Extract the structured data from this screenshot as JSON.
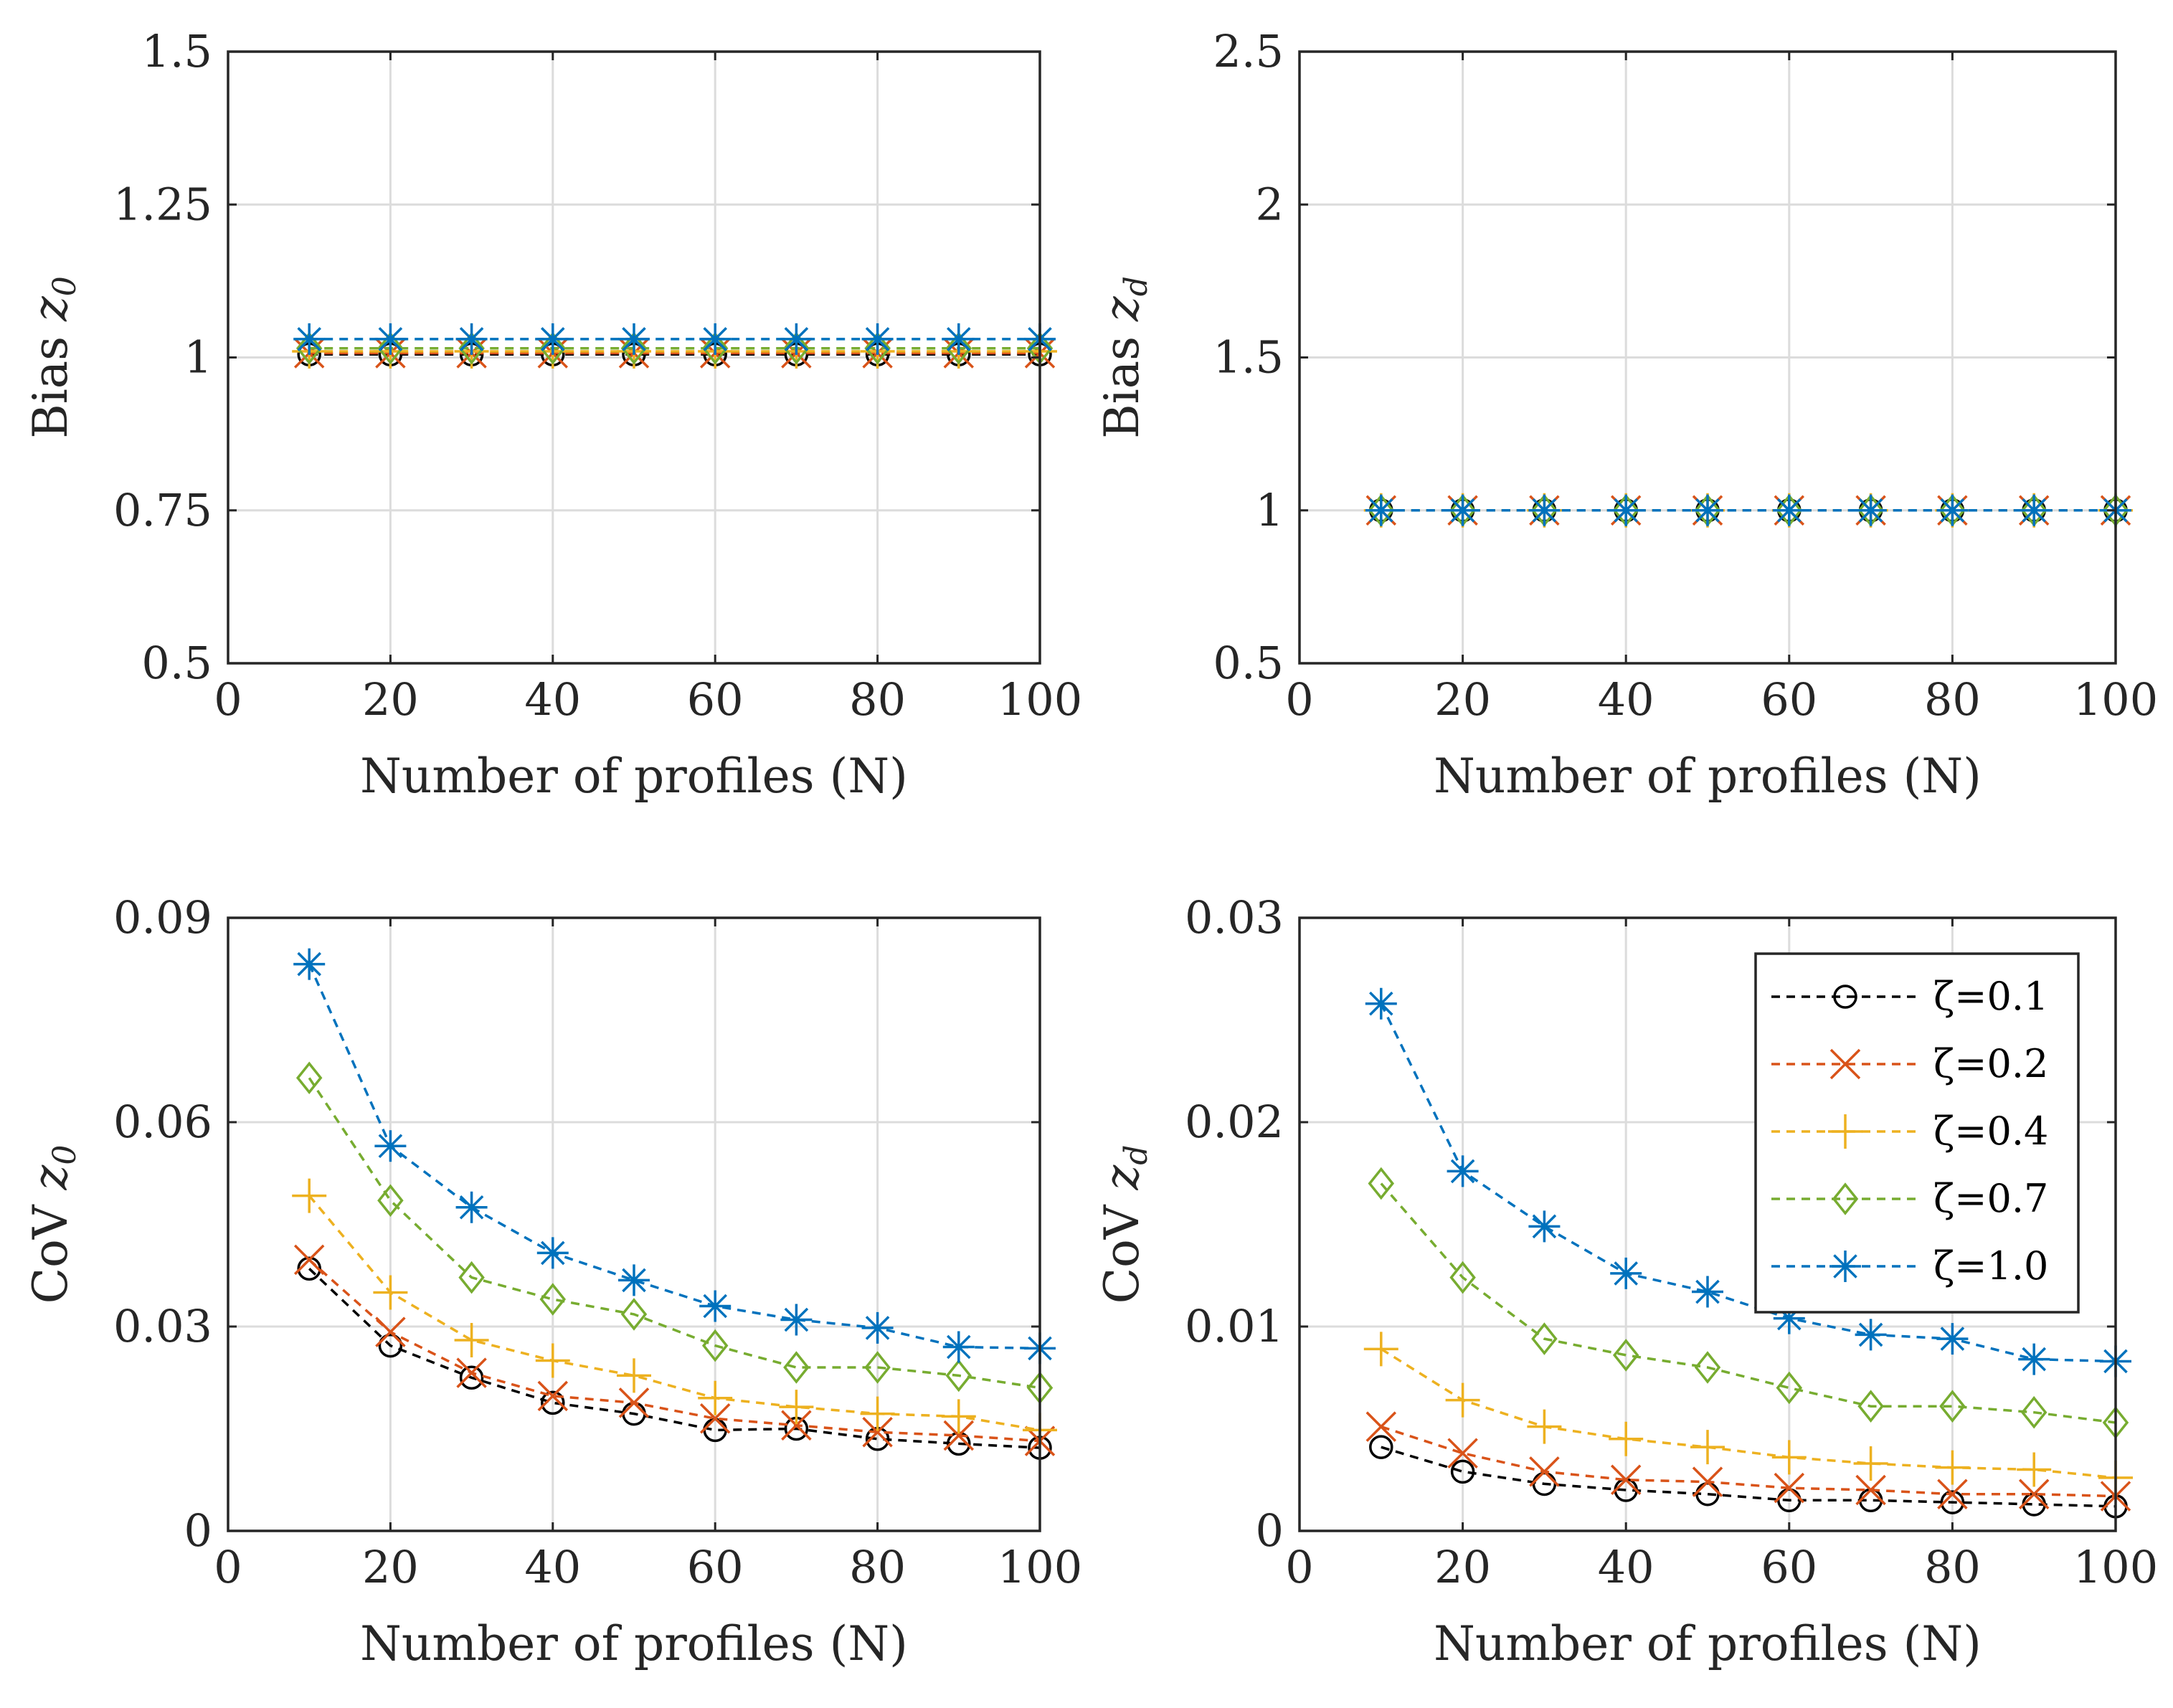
{
  "chart_data": [
    {
      "type": "line",
      "title": "",
      "xlabel": "Number of profiles (N)",
      "ylabel": "Bias",
      "ylabel_var": "z",
      "ylabel_sub": "0",
      "xlim": [
        0,
        100
      ],
      "ylim": [
        0.5,
        1.5
      ],
      "xticks": [
        0,
        20,
        40,
        60,
        80,
        100
      ],
      "xtick_labels": [
        "0",
        "20",
        "40",
        "60",
        "80",
        "100"
      ],
      "yticks": [
        0.5,
        0.75,
        1,
        1.25,
        1.5
      ],
      "ytick_labels": [
        "0.5",
        "0.75",
        "1",
        "1.25",
        "1.5"
      ],
      "grid": true,
      "x": [
        10,
        20,
        30,
        40,
        50,
        60,
        70,
        80,
        90,
        100
      ],
      "series": [
        {
          "name": "ζ=0.1",
          "marker": "circle",
          "color": "#000000",
          "values": [
            1.005,
            1.005,
            1.005,
            1.005,
            1.005,
            1.005,
            1.005,
            1.005,
            1.005,
            1.005
          ]
        },
        {
          "name": "ζ=0.2",
          "marker": "x",
          "color": "#D95319",
          "values": [
            1.007,
            1.007,
            1.007,
            1.007,
            1.007,
            1.007,
            1.007,
            1.007,
            1.007,
            1.007
          ]
        },
        {
          "name": "ζ=0.4",
          "marker": "plus",
          "color": "#EDB120",
          "values": [
            1.01,
            1.01,
            1.01,
            1.01,
            1.01,
            1.01,
            1.01,
            1.01,
            1.01,
            1.01
          ]
        },
        {
          "name": "ζ=0.7",
          "marker": "diamond",
          "color": "#77AC30",
          "values": [
            1.015,
            1.015,
            1.015,
            1.015,
            1.015,
            1.015,
            1.015,
            1.015,
            1.015,
            1.015
          ]
        },
        {
          "name": "ζ=1.0",
          "marker": "asterisk",
          "color": "#0072BD",
          "values": [
            1.03,
            1.03,
            1.03,
            1.03,
            1.03,
            1.03,
            1.03,
            1.03,
            1.03,
            1.03
          ]
        }
      ]
    },
    {
      "type": "line",
      "title": "",
      "xlabel": "Number of profiles (N)",
      "ylabel": "Bias",
      "ylabel_var": "z",
      "ylabel_sub": "d",
      "xlim": [
        0,
        100
      ],
      "ylim": [
        0.5,
        2.5
      ],
      "xticks": [
        0,
        20,
        40,
        60,
        80,
        100
      ],
      "xtick_labels": [
        "0",
        "20",
        "40",
        "60",
        "80",
        "100"
      ],
      "yticks": [
        0.5,
        1,
        1.5,
        2,
        2.5
      ],
      "ytick_labels": [
        "0.5",
        "1",
        "1.5",
        "2",
        "2.5"
      ],
      "grid": true,
      "x": [
        10,
        20,
        30,
        40,
        50,
        60,
        70,
        80,
        90,
        100
      ],
      "series": [
        {
          "name": "ζ=0.1",
          "marker": "circle",
          "color": "#000000",
          "values": [
            1,
            1,
            1,
            1,
            1,
            1,
            1,
            1,
            1,
            1
          ]
        },
        {
          "name": "ζ=0.2",
          "marker": "x",
          "color": "#D95319",
          "values": [
            1,
            1,
            1,
            1,
            1,
            1,
            1,
            1,
            1,
            1
          ]
        },
        {
          "name": "ζ=0.4",
          "marker": "plus",
          "color": "#EDB120",
          "values": [
            1,
            1,
            1,
            1,
            1,
            1,
            1,
            1,
            1,
            1
          ]
        },
        {
          "name": "ζ=0.7",
          "marker": "diamond",
          "color": "#77AC30",
          "values": [
            1,
            1,
            1,
            1,
            1,
            1,
            1,
            1,
            1,
            1
          ]
        },
        {
          "name": "ζ=1.0",
          "marker": "asterisk",
          "color": "#0072BD",
          "values": [
            1,
            1,
            1,
            1,
            1,
            1,
            1,
            1,
            1,
            1
          ]
        }
      ]
    },
    {
      "type": "line",
      "title": "",
      "xlabel": "Number of profiles (N)",
      "ylabel": "CoV",
      "ylabel_var": "z",
      "ylabel_sub": "0",
      "xlim": [
        0,
        100
      ],
      "ylim": [
        0,
        0.09
      ],
      "xticks": [
        0,
        20,
        40,
        60,
        80,
        100
      ],
      "xtick_labels": [
        "0",
        "20",
        "40",
        "60",
        "80",
        "100"
      ],
      "yticks": [
        0,
        0.03,
        0.06,
        0.09
      ],
      "ytick_labels": [
        "0",
        "0.03",
        "0.06",
        "0.09"
      ],
      "grid": true,
      "x": [
        10,
        20,
        30,
        40,
        50,
        60,
        70,
        80,
        90,
        100
      ],
      "series": [
        {
          "name": "ζ=0.1",
          "marker": "circle",
          "color": "#000000",
          "values": [
            0.0385,
            0.0272,
            0.0225,
            0.0188,
            0.0172,
            0.0148,
            0.015,
            0.0135,
            0.0128,
            0.0122
          ]
        },
        {
          "name": "ζ=0.2",
          "marker": "x",
          "color": "#D95319",
          "values": [
            0.0398,
            0.0292,
            0.0232,
            0.0198,
            0.0188,
            0.0165,
            0.0155,
            0.0145,
            0.014,
            0.0132
          ]
        },
        {
          "name": "ζ=0.4",
          "marker": "plus",
          "color": "#EDB120",
          "values": [
            0.0492,
            0.035,
            0.028,
            0.025,
            0.0228,
            0.0195,
            0.0182,
            0.0172,
            0.0168,
            0.0148
          ]
        },
        {
          "name": "ζ=0.7",
          "marker": "diamond",
          "color": "#77AC30",
          "values": [
            0.0665,
            0.0485,
            0.0372,
            0.034,
            0.0318,
            0.0272,
            0.024,
            0.024,
            0.0228,
            0.021
          ]
        },
        {
          "name": "ζ=1.0",
          "marker": "asterisk",
          "color": "#0072BD",
          "values": [
            0.0832,
            0.0565,
            0.0475,
            0.0408,
            0.0368,
            0.033,
            0.031,
            0.0298,
            0.027,
            0.0268
          ]
        }
      ]
    },
    {
      "type": "line",
      "title": "",
      "xlabel": "Number of profiles (N)",
      "ylabel": "CoV",
      "ylabel_var": "z",
      "ylabel_sub": "d",
      "xlim": [
        0,
        100
      ],
      "ylim": [
        0,
        0.03
      ],
      "xticks": [
        0,
        20,
        40,
        60,
        80,
        100
      ],
      "xtick_labels": [
        "0",
        "20",
        "40",
        "60",
        "80",
        "100"
      ],
      "yticks": [
        0,
        0.01,
        0.02,
        0.03
      ],
      "ytick_labels": [
        "0",
        "0.01",
        "0.02",
        "0.03"
      ],
      "grid": true,
      "legend": "top-right",
      "x": [
        10,
        20,
        30,
        40,
        50,
        60,
        70,
        80,
        90,
        100
      ],
      "series": [
        {
          "name": "ζ=0.1",
          "marker": "circle",
          "color": "#000000",
          "values": [
            0.0041,
            0.0029,
            0.0023,
            0.002,
            0.0018,
            0.0015,
            0.0015,
            0.0014,
            0.0013,
            0.0012
          ]
        },
        {
          "name": "ζ=0.2",
          "marker": "x",
          "color": "#D95319",
          "values": [
            0.0051,
            0.0038,
            0.0029,
            0.0025,
            0.0024,
            0.0021,
            0.002,
            0.0018,
            0.0018,
            0.0017
          ]
        },
        {
          "name": "ζ=0.4",
          "marker": "plus",
          "color": "#EDB120",
          "values": [
            0.0089,
            0.0064,
            0.0051,
            0.0045,
            0.0041,
            0.0036,
            0.0033,
            0.0031,
            0.003,
            0.0026
          ]
        },
        {
          "name": "ζ=0.7",
          "marker": "diamond",
          "color": "#77AC30",
          "values": [
            0.017,
            0.0124,
            0.0094,
            0.0086,
            0.008,
            0.007,
            0.0061,
            0.0061,
            0.0058,
            0.0053
          ]
        },
        {
          "name": "ζ=1.0",
          "marker": "asterisk",
          "color": "#0072BD",
          "values": [
            0.0258,
            0.0176,
            0.0149,
            0.0126,
            0.0117,
            0.0104,
            0.0096,
            0.0094,
            0.0084,
            0.0083
          ]
        }
      ]
    }
  ]
}
